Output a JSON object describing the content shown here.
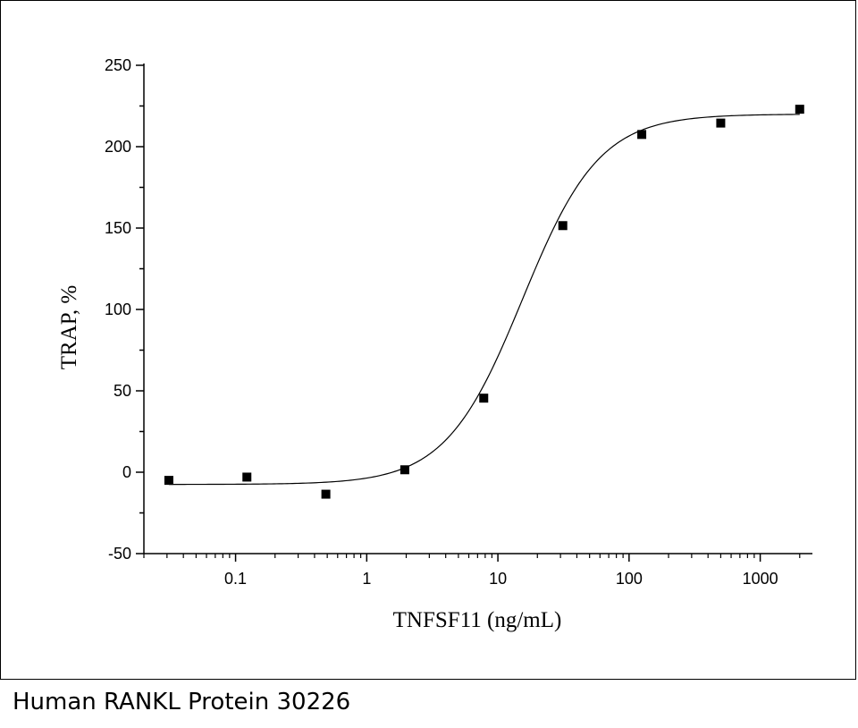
{
  "caption": "Human RANKL Protein 30226",
  "chart_data": {
    "type": "scatter",
    "title": "",
    "xlabel": "TNFSF11 (ng/mL)",
    "ylabel": "TRAP, %",
    "xscale": "log",
    "xlim": [
      0.02,
      2500
    ],
    "ylim": [
      -50,
      250
    ],
    "x_tick_labels": [
      "0.1",
      "1",
      "10",
      "100",
      "1000"
    ],
    "x_ticks": [
      0.1,
      1,
      10,
      100,
      1000
    ],
    "y_ticks": [
      -50,
      0,
      50,
      100,
      150,
      200,
      250
    ],
    "y_tick_labels": [
      "-50",
      "0",
      "50",
      "100",
      "150",
      "200",
      "250"
    ],
    "grid": false,
    "legend": "none",
    "marker": "square",
    "marker_color": "#000000",
    "curve_color": "#000000",
    "points": {
      "x": [
        0.031,
        0.122,
        0.488,
        1.95,
        7.8,
        31.25,
        125,
        500,
        2000
      ],
      "y": [
        -5,
        -3,
        -13.5,
        1.5,
        45.5,
        151.5,
        207.5,
        214.5,
        223
      ]
    },
    "fit": {
      "model": "4PL",
      "bottom": -7.5,
      "top": 220,
      "ec50": 15.4,
      "hill": 1.48
    }
  }
}
